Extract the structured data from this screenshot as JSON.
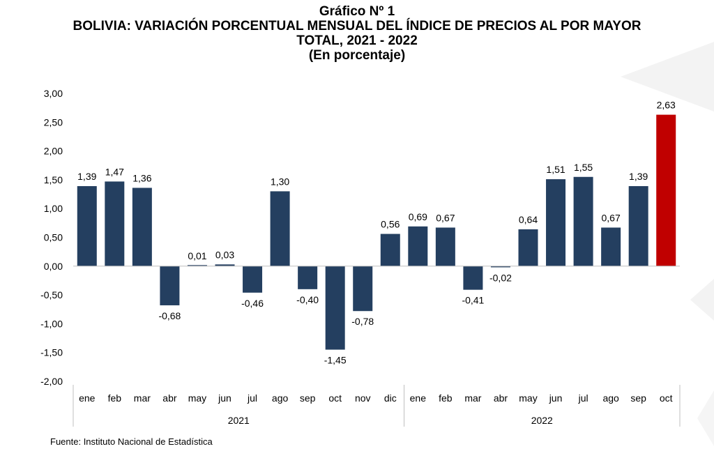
{
  "chart_data": {
    "type": "bar",
    "title_line1": "Gráfico Nº 1",
    "title_line2": "BOLIVIA: VARIACIÓN PORCENTUAL MENSUAL DEL ÍNDICE DE PRECIOS AL POR MAYOR",
    "title_line3": "TOTAL, 2021 - 2022",
    "subtitle": "(En porcentaje)",
    "categories": [
      "ene",
      "feb",
      "mar",
      "abr",
      "may",
      "jun",
      "jul",
      "ago",
      "sep",
      "oct",
      "nov",
      "dic",
      "ene",
      "feb",
      "mar",
      "abr",
      "may",
      "jun",
      "jul",
      "ago",
      "sep",
      "oct"
    ],
    "groups": [
      {
        "label": "2021",
        "count": 12
      },
      {
        "label": "2022",
        "count": 10
      }
    ],
    "values": [
      1.39,
      1.47,
      1.36,
      -0.68,
      0.01,
      0.03,
      -0.46,
      1.3,
      -0.4,
      -1.45,
      -0.78,
      0.56,
      0.69,
      0.67,
      -0.41,
      -0.02,
      0.64,
      1.51,
      1.55,
      0.67,
      1.39,
      2.63
    ],
    "value_labels": [
      "1,39",
      "1,47",
      "1,36",
      "-0,68",
      "0,01",
      "0,03",
      "-0,46",
      "1,30",
      "-0,40",
      "-1,45",
      "-0,78",
      "0,56",
      "0,69",
      "0,67",
      "-0,41",
      "-0,02",
      "0,64",
      "1,51",
      "1,55",
      "0,67",
      "1,39",
      "2,63"
    ],
    "highlight_index": 21,
    "ylim": [
      -2.0,
      3.0
    ],
    "yticks": [
      3.0,
      2.5,
      2.0,
      1.5,
      1.0,
      0.5,
      0.0,
      -0.5,
      -1.0,
      -1.5,
      -2.0
    ],
    "ytick_labels": [
      "3,00",
      "2,50",
      "2,00",
      "1,50",
      "1,00",
      "0,50",
      "0,00",
      "-0,50",
      "-1,00",
      "-1,50",
      "-2,00"
    ],
    "grid": false,
    "colors": {
      "bar": "#243f60",
      "highlight": "#c00000",
      "axis": "#bfbfbf",
      "text": "#000000"
    }
  },
  "source": "Fuente: Instituto Nacional de Estadística"
}
